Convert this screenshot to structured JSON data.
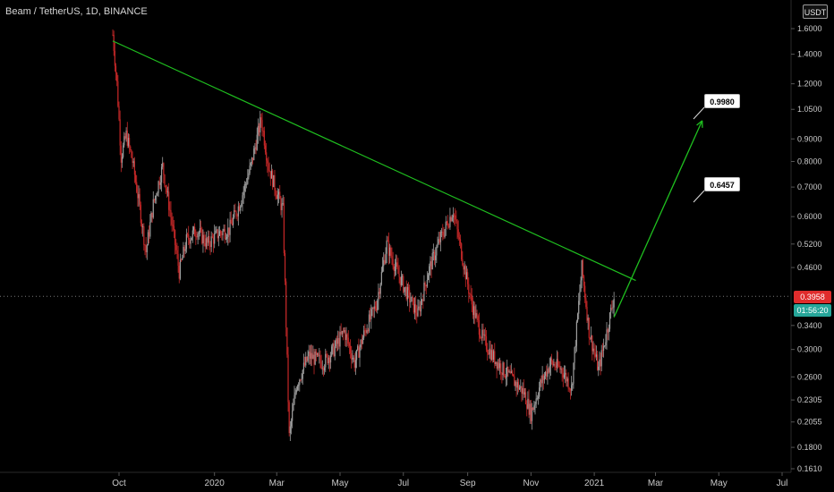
{
  "header": {
    "title": "Beam / TetherUS, 1D, BINANCE",
    "currency": "USDT"
  },
  "price_labels": {
    "current": "0.3958",
    "countdown": "01:56:20"
  },
  "annotations": {
    "target_high": "0.9980",
    "target_mid": "0.6457"
  },
  "colors": {
    "background": "#000000",
    "candle_up": "#9e9e9e",
    "candle_down": "#c62828",
    "trendline": "#1fbf1f",
    "projection": "#1fbf1f",
    "current_price": "#e02c2c",
    "countdown": "#26a69a",
    "grid": "#1a1a1a"
  },
  "chart_data": {
    "type": "candlestick",
    "title": "Beam / TetherUS, 1D, BINANCE",
    "xlabel": "",
    "ylabel": "",
    "y_scale": "log",
    "ylim": [
      0.16,
      1.7
    ],
    "y_ticks": [
      1.6,
      1.4,
      1.2,
      1.05,
      0.9,
      0.8,
      0.7,
      0.6,
      0.52,
      0.46,
      0.34,
      0.3,
      0.26,
      0.2305,
      0.2055,
      0.18,
      0.161
    ],
    "y_tick_labels": [
      "1.6000",
      "1.4000",
      "1.2000",
      "1.0500",
      "0.9000",
      "0.8000",
      "0.7000",
      "0.6000",
      "0.5200",
      "0.4600",
      "0.3400",
      "0.3000",
      "0.2600",
      "0.2305",
      "0.2055",
      "0.1800",
      "0.1610"
    ],
    "x_ticks": [
      "2019-10-01",
      "2020-01-01",
      "2020-03-01",
      "2020-05-01",
      "2020-07-01",
      "2020-09-01",
      "2020-11-01",
      "2021-01-01",
      "2021-03-01",
      "2021-05-01",
      "2021-07-01"
    ],
    "x_tick_labels": [
      "Oct",
      "2020",
      "Mar",
      "May",
      "Jul",
      "Sep",
      "Nov",
      "2021",
      "Mar",
      "May",
      "Jul"
    ],
    "grid": false,
    "last_price": 0.3958,
    "trendline": {
      "points": [
        [
          "2019-09-25",
          1.5
        ],
        [
          "2020-02-15",
          1.04
        ],
        [
          "2020-08-20",
          0.65
        ],
        [
          "2020-12-20",
          0.5
        ],
        [
          "2021-02-10",
          0.43
        ]
      ]
    },
    "projection": {
      "points": [
        [
          "2021-01-20",
          0.355
        ],
        [
          "2021-04-15",
          0.99
        ]
      ]
    },
    "price_path": [
      [
        "2019-09-25",
        1.55
      ],
      [
        "2019-09-29",
        1.2
      ],
      [
        "2019-10-03",
        0.82
      ],
      [
        "2019-10-08",
        0.92
      ],
      [
        "2019-10-14",
        0.8
      ],
      [
        "2019-10-20",
        0.65
      ],
      [
        "2019-10-27",
        0.5
      ],
      [
        "2019-11-03",
        0.64
      ],
      [
        "2019-11-12",
        0.78
      ],
      [
        "2019-11-20",
        0.6
      ],
      [
        "2019-11-28",
        0.45
      ],
      [
        "2019-12-05",
        0.53
      ],
      [
        "2019-12-15",
        0.56
      ],
      [
        "2019-12-25",
        0.52
      ],
      [
        "2020-01-05",
        0.55
      ],
      [
        "2020-01-15",
        0.56
      ],
      [
        "2020-01-25",
        0.64
      ],
      [
        "2020-02-05",
        0.78
      ],
      [
        "2020-02-15",
        1.0
      ],
      [
        "2020-02-22",
        0.78
      ],
      [
        "2020-03-01",
        0.68
      ],
      [
        "2020-03-07",
        0.62
      ],
      [
        "2020-03-13",
        0.19
      ],
      [
        "2020-03-20",
        0.25
      ],
      [
        "2020-04-01",
        0.29
      ],
      [
        "2020-04-15",
        0.28
      ],
      [
        "2020-04-25",
        0.3
      ],
      [
        "2020-05-05",
        0.33
      ],
      [
        "2020-05-15",
        0.28
      ],
      [
        "2020-05-25",
        0.33
      ],
      [
        "2020-06-05",
        0.38
      ],
      [
        "2020-06-15",
        0.52
      ],
      [
        "2020-06-25",
        0.45
      ],
      [
        "2020-07-05",
        0.4
      ],
      [
        "2020-07-15",
        0.36
      ],
      [
        "2020-07-25",
        0.45
      ],
      [
        "2020-08-05",
        0.53
      ],
      [
        "2020-08-18",
        0.62
      ],
      [
        "2020-08-28",
        0.47
      ],
      [
        "2020-09-05",
        0.38
      ],
      [
        "2020-09-15",
        0.32
      ],
      [
        "2020-09-25",
        0.29
      ],
      [
        "2020-10-05",
        0.27
      ],
      [
        "2020-10-15",
        0.255
      ],
      [
        "2020-10-25",
        0.24
      ],
      [
        "2020-11-01",
        0.215
      ],
      [
        "2020-11-10",
        0.25
      ],
      [
        "2020-11-20",
        0.28
      ],
      [
        "2020-12-01",
        0.27
      ],
      [
        "2020-12-10",
        0.245
      ],
      [
        "2020-12-20",
        0.46
      ],
      [
        "2020-12-27",
        0.33
      ],
      [
        "2021-01-05",
        0.27
      ],
      [
        "2021-01-12",
        0.32
      ],
      [
        "2021-01-20",
        0.3958
      ]
    ]
  }
}
